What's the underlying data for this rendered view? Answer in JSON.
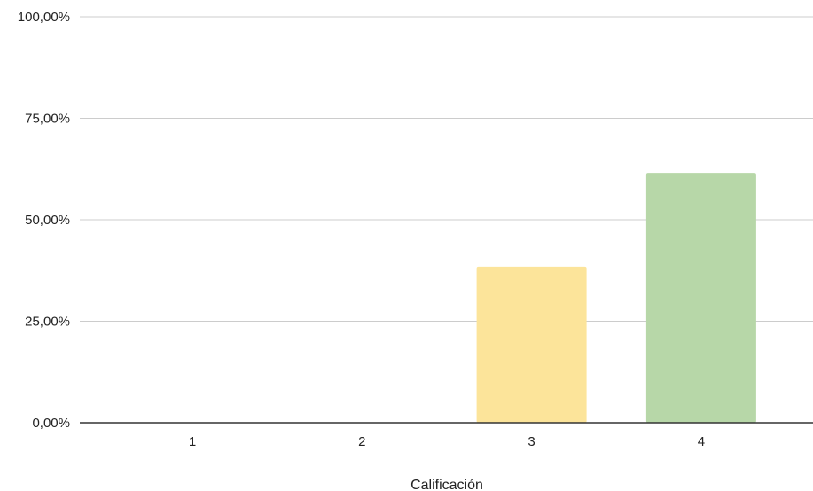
{
  "chart_data": {
    "type": "bar",
    "title": "",
    "xlabel": "Calificación",
    "ylabel": "",
    "categories": [
      "1",
      "2",
      "3",
      "4"
    ],
    "values": [
      0,
      0,
      38.46,
      61.54
    ],
    "bar_colors": [
      "#fce49a",
      "#fce49a",
      "#fce49a",
      "#b7d7a8"
    ],
    "ylim": [
      0,
      100
    ],
    "yticks": [
      0,
      25,
      50,
      75,
      100
    ],
    "ytick_labels": [
      "0,00%",
      "25,00%",
      "50,00%",
      "75,00%",
      "100,00%"
    ],
    "grid": true,
    "legend": "none",
    "gridline_color": "#cccccc",
    "baseline_color": "#333333"
  }
}
